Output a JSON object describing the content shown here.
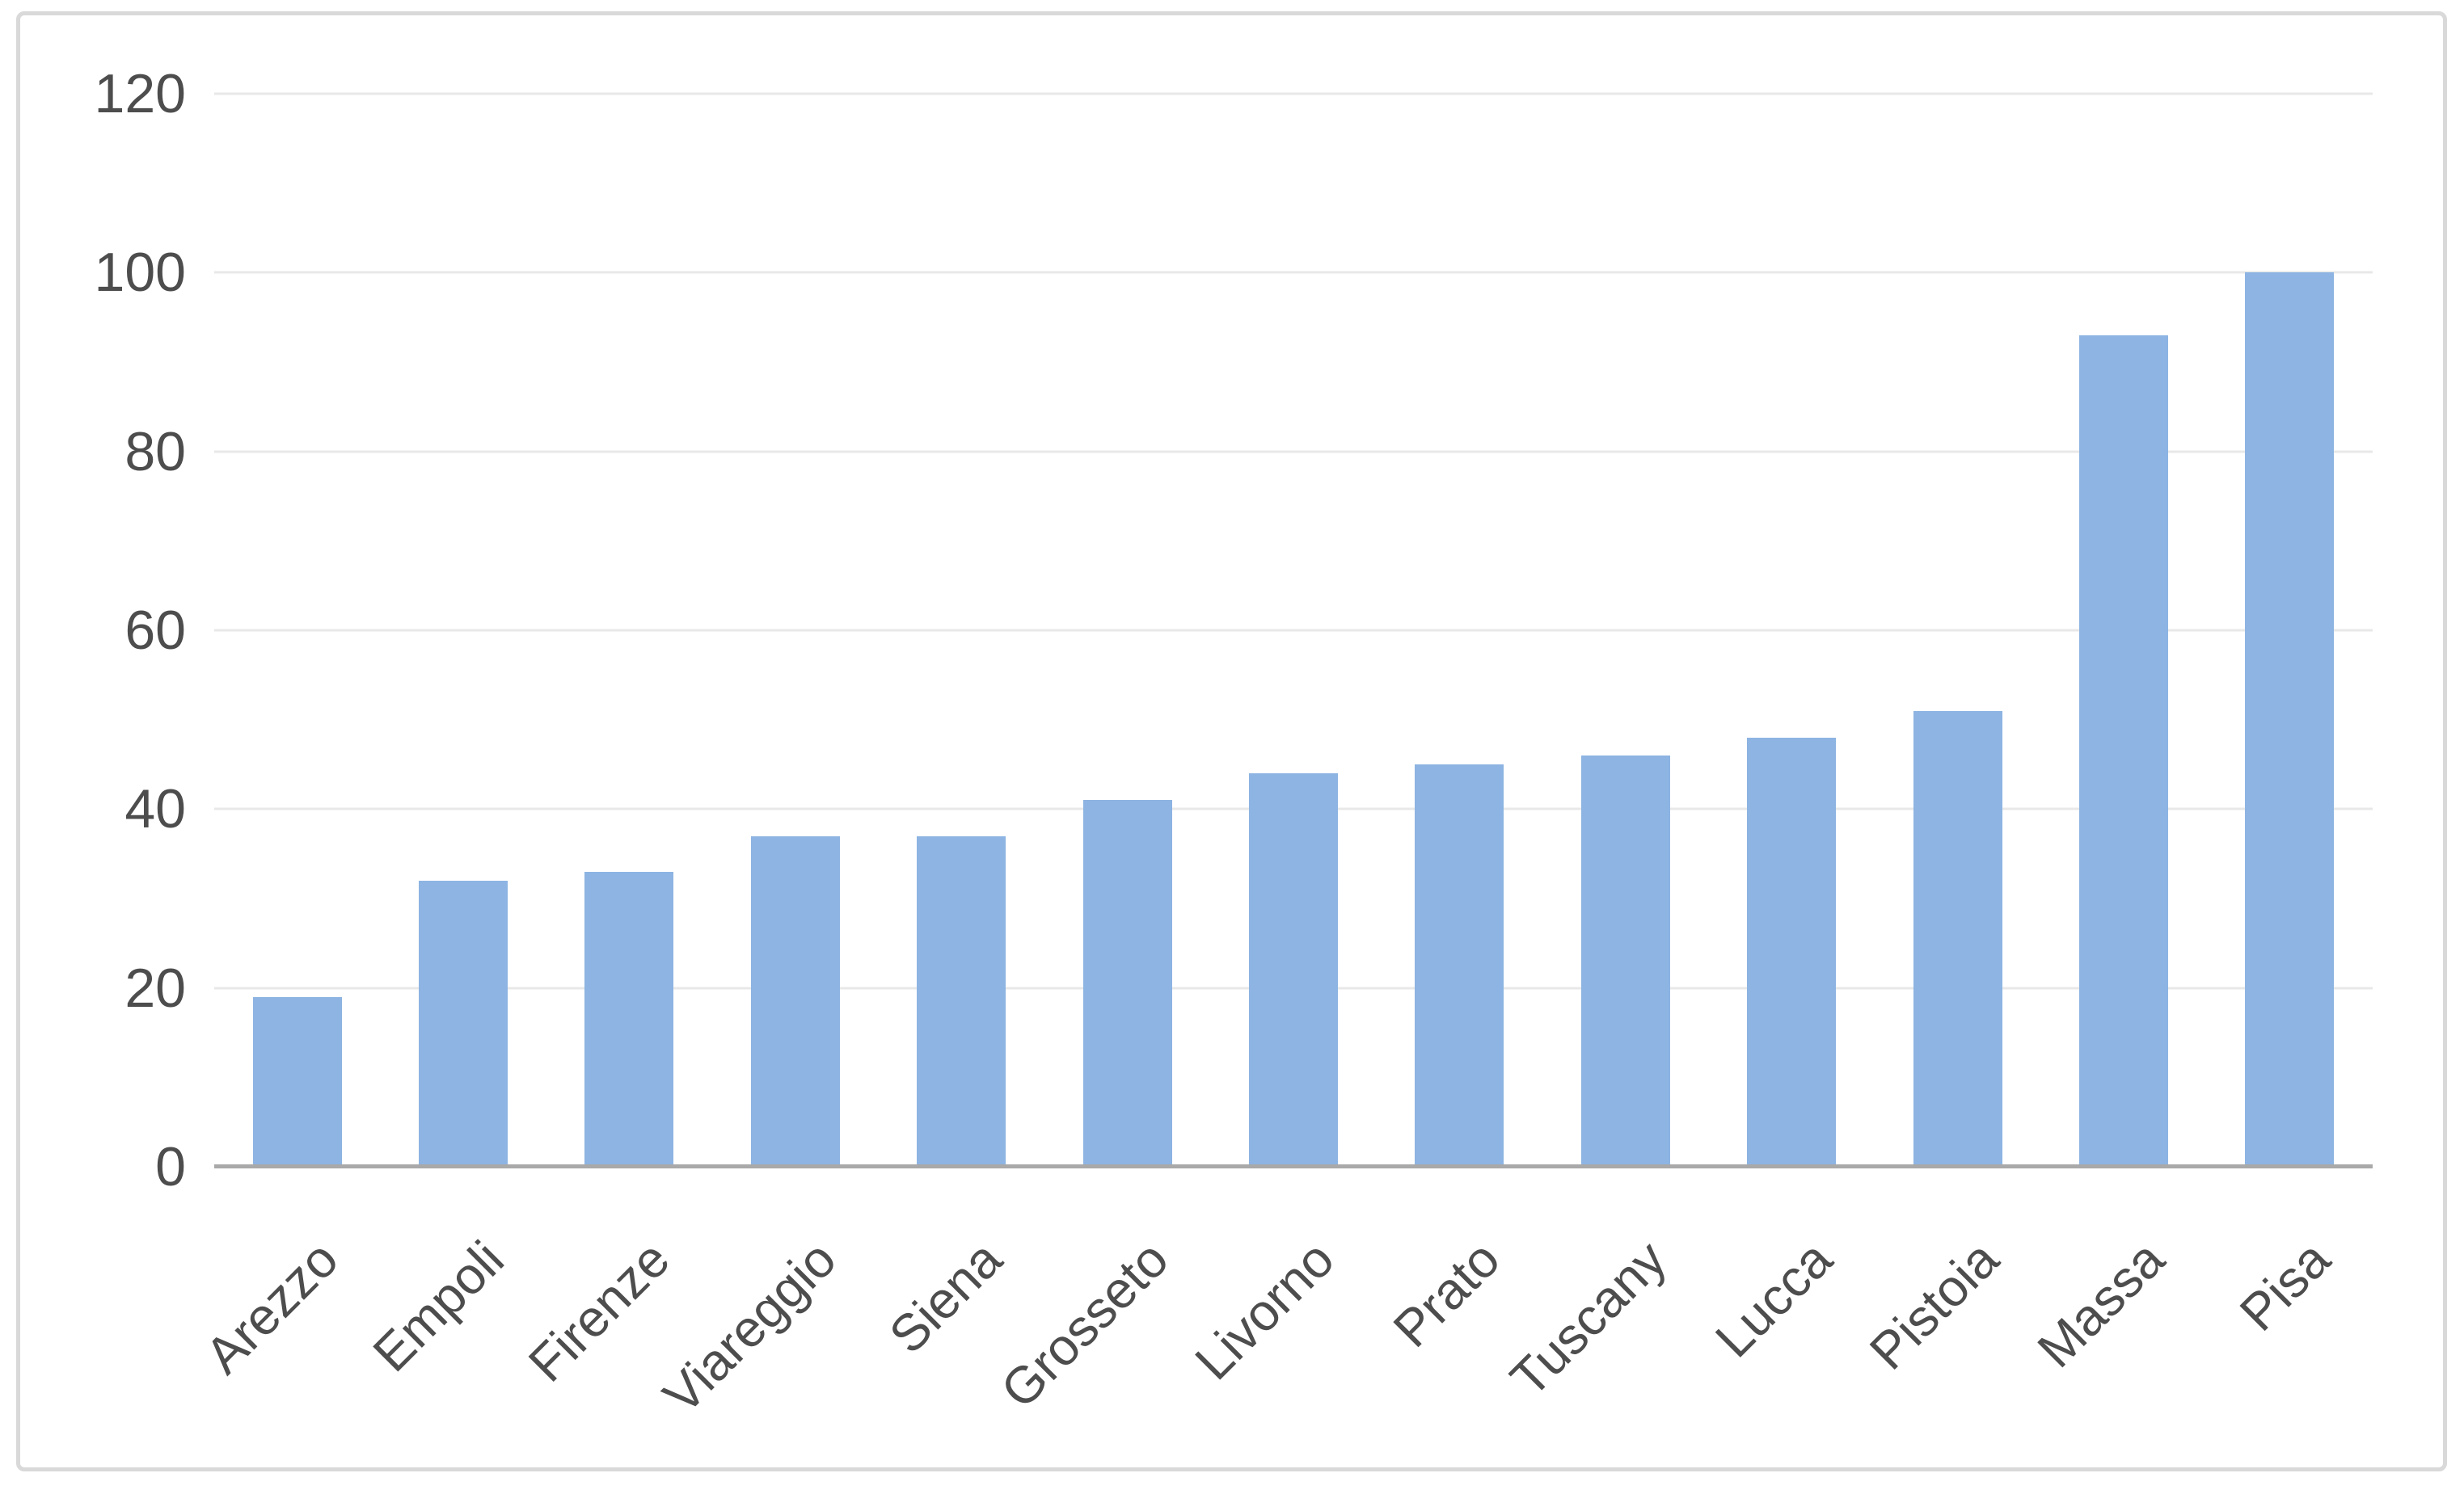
{
  "chart_data": {
    "type": "bar",
    "title": "",
    "xlabel": "",
    "ylabel": "",
    "categories": [
      "Arezzo",
      "Empoli",
      "Firenze",
      "Viareggio",
      "Siena",
      "Grosseto",
      "Livorno",
      "Prato",
      "Tuscany",
      "Lucca",
      "Pistoia",
      "Massa",
      "Pisa"
    ],
    "values": [
      19,
      32,
      33,
      37,
      37,
      41,
      44,
      45,
      46,
      48,
      51,
      93,
      100
    ],
    "ylim": [
      0,
      120
    ],
    "yticks": [
      0,
      20,
      40,
      60,
      80,
      100,
      120
    ],
    "grid": true,
    "legend_position": "none",
    "x_label_rotation_deg": 45,
    "colors": {
      "bar": "#8DB4E2",
      "gridline": "#E8E8E8",
      "axis_line": "#A9A9A9",
      "tick_label": "#4D4D4D",
      "frame_border": "#D9D9D9",
      "background": "#FFFFFF"
    }
  }
}
